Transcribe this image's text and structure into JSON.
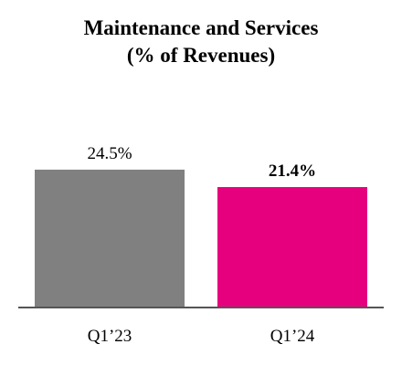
{
  "chart_data": {
    "type": "bar",
    "title_lines": [
      "Maintenance and Services",
      "(% of Revenues)"
    ],
    "categories": [
      "Q1’23",
      "Q1’24"
    ],
    "values": [
      24.5,
      21.4
    ],
    "data_labels": [
      "24.5%",
      "21.4%"
    ],
    "label_bold": [
      false,
      true
    ],
    "colors": [
      "#808080",
      "#e6007e"
    ],
    "xlabel": "",
    "ylabel": "",
    "ylim": [
      0,
      30
    ],
    "grid": false,
    "legend": "none"
  }
}
